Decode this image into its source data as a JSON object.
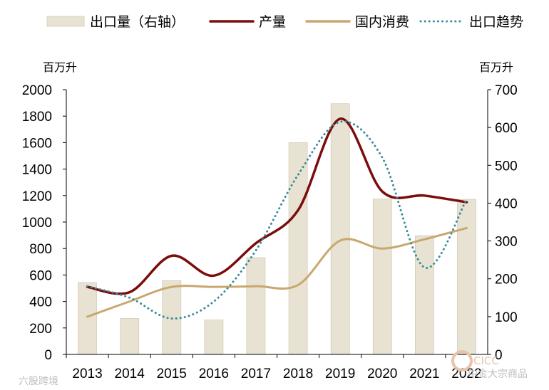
{
  "chart_data": {
    "type": "bar+line",
    "categories": [
      "2013",
      "2014",
      "2015",
      "2016",
      "2017",
      "2018",
      "2019",
      "2020",
      "2021",
      "2022"
    ],
    "left_axis": {
      "unit_label": "百万升",
      "ylim": [
        0,
        2000
      ],
      "ticks": [
        0,
        200,
        400,
        600,
        800,
        1000,
        1200,
        1400,
        1600,
        1800,
        2000
      ]
    },
    "right_axis": {
      "unit_label": "百万升",
      "ylim": [
        0,
        700
      ],
      "ticks": [
        0,
        100,
        200,
        300,
        400,
        500,
        600,
        700
      ]
    },
    "series": [
      {
        "name": "出口量（右轴）",
        "kind": "bar",
        "axis": "right",
        "color": "#e8e2d3",
        "values": [
          190,
          95,
          195,
          91,
          256,
          560,
          663,
          411,
          314,
          410
        ]
      },
      {
        "name": "产量",
        "kind": "line",
        "axis": "left",
        "color": "#7b0d0d",
        "values": [
          510,
          470,
          745,
          595,
          840,
          1090,
          1780,
          1230,
          1200,
          1150
        ]
      },
      {
        "name": "国内消费",
        "kind": "line",
        "axis": "left",
        "color": "#c9a76e",
        "values": [
          285,
          400,
          510,
          510,
          515,
          525,
          860,
          800,
          870,
          955
        ]
      },
      {
        "name": "出口趋势",
        "kind": "dotted",
        "axis": "right",
        "color": "#3a8b9a",
        "values": [
          180,
          150,
          95,
          140,
          275,
          475,
          615,
          520,
          230,
          410
        ]
      }
    ]
  },
  "watermarks": {
    "left": "六股跨境",
    "right_top": "CICC",
    "right_bottom": "中金大宗商品"
  }
}
